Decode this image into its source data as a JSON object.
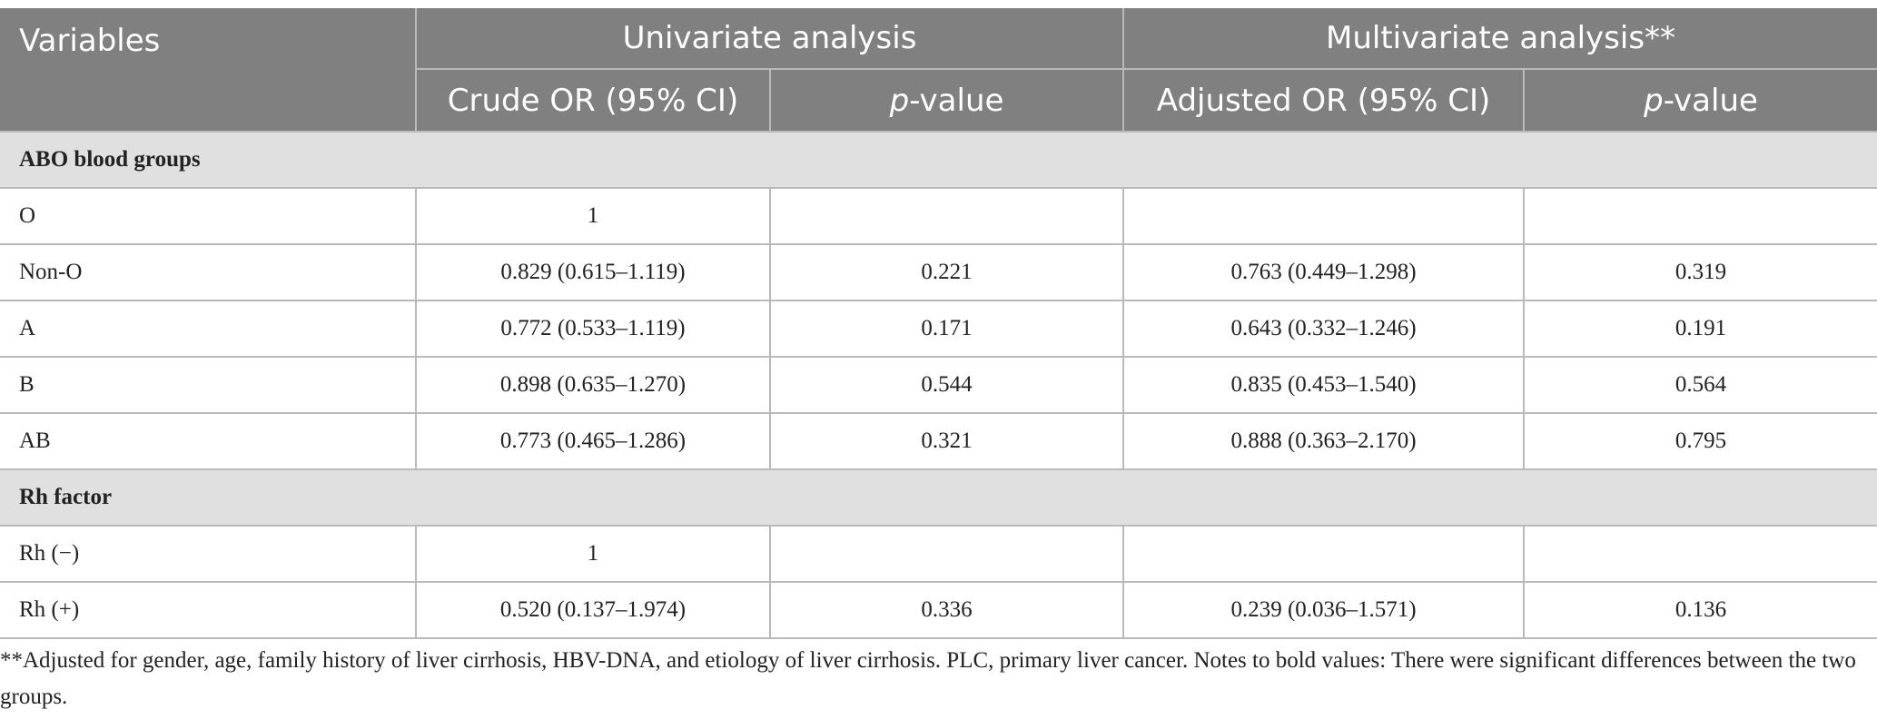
{
  "table": {
    "headers": {
      "variables": "Variables",
      "univariate": "Univariate analysis",
      "multivariate": "Multivariate analysis**",
      "crude_or": "Crude OR (95% CI)",
      "p_italic": "p",
      "p_suffix": "-value",
      "adjusted_or": "Adjusted OR (95% CI)"
    },
    "sections": {
      "abo": "ABO blood groups",
      "rh": "Rh factor"
    },
    "rows": [
      {
        "variable": "O",
        "crude": "1",
        "p1": "",
        "adjusted": "",
        "p2": ""
      },
      {
        "variable": "Non-O",
        "crude": "0.829 (0.615–1.119)",
        "p1": "0.221",
        "adjusted": "0.763 (0.449–1.298)",
        "p2": "0.319"
      },
      {
        "variable": "A",
        "crude": "0.772 (0.533–1.119)",
        "p1": "0.171",
        "adjusted": "0.643 (0.332–1.246)",
        "p2": "0.191"
      },
      {
        "variable": "B",
        "crude": "0.898 (0.635–1.270)",
        "p1": "0.544",
        "adjusted": "0.835 (0.453–1.540)",
        "p2": "0.564"
      },
      {
        "variable": "AB",
        "crude": "0.773 (0.465–1.286)",
        "p1": "0.321",
        "adjusted": "0.888 (0.363–2.170)",
        "p2": "0.795"
      },
      {
        "variable": "Rh (−)",
        "crude": "1",
        "p1": "",
        "adjusted": "",
        "p2": ""
      },
      {
        "variable": "Rh (+)",
        "crude": "0.520 (0.137–1.974)",
        "p1": "0.336",
        "adjusted": "0.239 (0.036–1.571)",
        "p2": "0.136"
      }
    ]
  },
  "footnote": "**Adjusted for gender, age, family history of liver cirrhosis, HBV-DNA, and etiology of liver cirrhosis. PLC, primary liver cancer. Notes to bold values: There were significant differences between the two groups."
}
